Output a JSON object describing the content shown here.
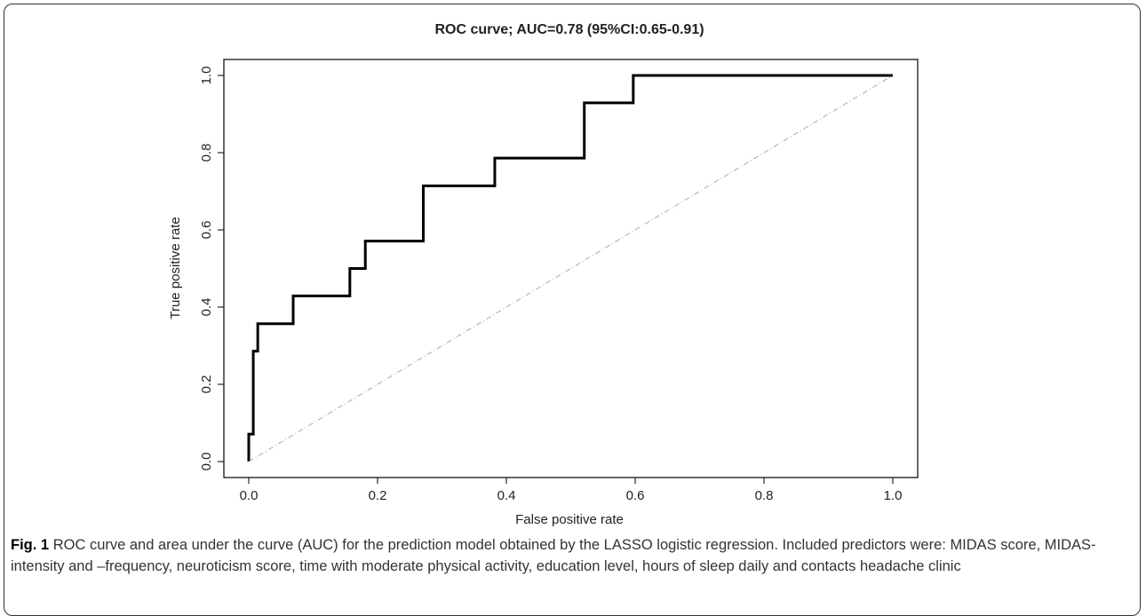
{
  "chart_data": {
    "type": "line",
    "title": "ROC curve; AUC=0.78 (95%CI:0.65-0.91)",
    "x_label": "False positive rate",
    "y_label": "True positive rate",
    "xlim": [
      0,
      1
    ],
    "ylim": [
      0,
      1
    ],
    "xticks": [
      {
        "value": 0,
        "label": "0.0"
      },
      {
        "value": 0.2,
        "label": "0.2"
      },
      {
        "value": 0.4,
        "label": "0.4"
      },
      {
        "value": 0.6,
        "label": "0.6"
      },
      {
        "value": 0.8,
        "label": "0.8"
      },
      {
        "value": 1,
        "label": "1.0"
      }
    ],
    "yticks": [
      {
        "value": 0,
        "label": "0.0"
      },
      {
        "value": 0.2,
        "label": "0.2"
      },
      {
        "value": 0.4,
        "label": "0.4"
      },
      {
        "value": 0.6,
        "label": "0.6"
      },
      {
        "value": 0.8,
        "label": "0.8"
      },
      {
        "value": 1,
        "label": "1.0"
      }
    ],
    "series": [
      {
        "color": "#000000",
        "x": [
          0,
          0,
          0.007,
          0.007,
          0.014,
          0.014,
          0.069,
          0.069,
          0.157,
          0.157,
          0.181,
          0.181,
          0.271,
          0.271,
          0.382,
          0.382,
          0.521,
          0.521,
          0.597,
          0.597,
          1
        ],
        "values": [
          0,
          0.071,
          0.071,
          0.286,
          0.286,
          0.357,
          0.357,
          0.429,
          0.429,
          0.5,
          0.5,
          0.571,
          0.571,
          0.714,
          0.714,
          0.786,
          0.786,
          0.929,
          0.929,
          1,
          1
        ]
      },
      {
        "color": "#aaaaaa",
        "dashed": true,
        "x": [
          0,
          1
        ],
        "values": [
          0,
          1
        ]
      }
    ]
  },
  "caption": {
    "label": "Fig. 1",
    "text": "ROC curve and area under the curve (AUC) for the prediction model obtained by the LASSO logistic regression. Included predictors were: MIDAS score, MIDAS-intensity and –frequency, neuroticism score, time with moderate physical activity, education level, hours of sleep daily and contacts headache clinic"
  }
}
